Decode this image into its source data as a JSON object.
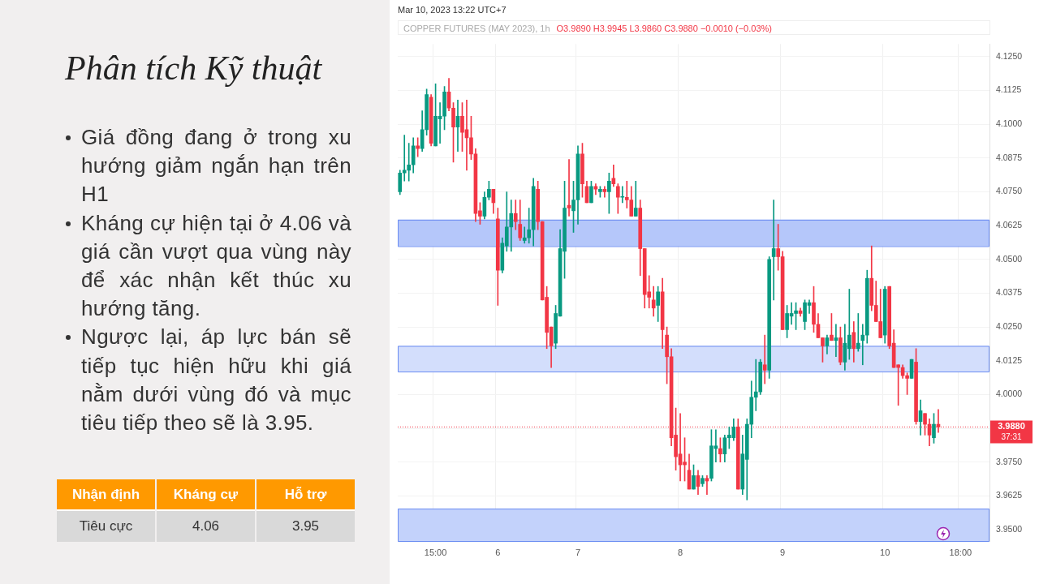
{
  "chart_data": {
    "type": "candlestick",
    "title": "Phân tích Kỹ thuật",
    "subtitle": "COPPER FUTURES (MAY 2023), 1h",
    "annotations": [
      "Mar 10, 2023 13:22 UTC+7",
      "O3.9890 H3.9945 L3.9860 C3.9880 −0.0010 (−0.03%)",
      "37:31",
      "Giá đồng đang ở trong xu hướng giảm ngắn hạn trên H1",
      "Kháng cự hiện tại ở 4.06 và giá cần vượt qua vùng này để xác nhận kết thúc xu hướng tăng.",
      "Ngược lại, áp lực bán sẽ tiếp tục hiện hữu khi giá nằm dưới vùng đó và mục tiêu tiếp theo sẽ là 3.95.",
      "Nhận định",
      "Kháng cự",
      "Hỗ trợ",
      "Tiêu cực",
      "4.06",
      "3.95"
    ],
    "categories": [
      null,
      null,
      null,
      null,
      null,
      null,
      null,
      null,
      "15:00",
      null,
      null,
      null,
      null,
      null,
      null,
      null,
      null,
      null,
      null,
      null,
      null,
      null,
      "6",
      null,
      null,
      null,
      null,
      null,
      null,
      null,
      null,
      null,
      null,
      null,
      null,
      null,
      null,
      null,
      null,
      null,
      "7",
      null,
      null,
      null,
      null,
      null,
      null,
      null,
      null,
      null,
      null,
      null,
      null,
      null,
      null,
      null,
      null,
      null,
      null,
      null,
      null,
      null,
      null,
      "8",
      null,
      null,
      null,
      null,
      null,
      null,
      null,
      null,
      null,
      null,
      null,
      null,
      null,
      null,
      null,
      null,
      null,
      null,
      null,
      null,
      null,
      null,
      "9",
      null,
      null,
      null,
      null,
      null,
      null,
      null,
      null,
      null,
      null,
      null,
      null,
      null,
      null,
      null,
      null,
      null,
      null,
      null,
      null,
      null,
      null,
      "10",
      null,
      null,
      null,
      null,
      null,
      null,
      null,
      null,
      null,
      null,
      null,
      null,
      null,
      null,
      null,
      null,
      "18:00",
      null,
      null,
      null,
      null,
      null,
      null
    ],
    "ohlc": [
      [
        4.075,
        4.083,
        4.074,
        4.082
      ],
      [
        4.082,
        4.096,
        4.079,
        4.083
      ],
      [
        4.083,
        4.093,
        4.079,
        4.085
      ],
      [
        4.085,
        4.095,
        4.082,
        4.092
      ],
      [
        4.092,
        4.095,
        4.088,
        4.091
      ],
      [
        4.091,
        4.105,
        4.09,
        4.098
      ],
      [
        4.098,
        4.113,
        4.096,
        4.111
      ],
      [
        4.11,
        4.111,
        4.092,
        4.093
      ],
      [
        4.092,
        4.115,
        4.092,
        4.103
      ],
      [
        4.102,
        4.108,
        4.093,
        4.103
      ],
      [
        4.103,
        4.114,
        4.098,
        4.112
      ],
      [
        4.112,
        4.117,
        4.105,
        4.106
      ],
      [
        4.106,
        4.108,
        4.086,
        4.099
      ],
      [
        4.099,
        4.109,
        4.09,
        4.103
      ],
      [
        4.103,
        4.108,
        4.09,
        4.097
      ],
      [
        4.098,
        4.109,
        4.083,
        4.095
      ],
      [
        4.095,
        4.103,
        4.087,
        4.089
      ],
      [
        4.089,
        4.091,
        4.064,
        4.067
      ],
      [
        4.068,
        4.071,
        4.063,
        4.066
      ],
      [
        4.066,
        4.075,
        4.065,
        4.073
      ],
      [
        4.073,
        4.079,
        4.072,
        4.076
      ],
      [
        4.076,
        4.076,
        4.067,
        4.071
      ],
      [
        4.065,
        4.069,
        4.033,
        4.046
      ],
      [
        4.046,
        4.058,
        4.045,
        4.056
      ],
      [
        4.055,
        4.075,
        4.053,
        4.062
      ],
      [
        4.062,
        4.072,
        4.053,
        4.067
      ],
      [
        4.067,
        4.072,
        4.061,
        4.064
      ],
      [
        4.063,
        4.072,
        4.057,
        4.058
      ],
      [
        4.057,
        4.062,
        4.056,
        4.058
      ],
      [
        4.058,
        4.069,
        4.056,
        4.061
      ],
      [
        4.061,
        4.08,
        4.055,
        4.077
      ],
      [
        4.076,
        4.079,
        4.061,
        4.064
      ],
      [
        4.064,
        4.064,
        4.035,
        4.035
      ],
      [
        4.036,
        4.04,
        4.017,
        4.023
      ],
      [
        4.025,
        4.025,
        4.01,
        4.018
      ],
      [
        4.019,
        4.033,
        4.017,
        4.03
      ],
      [
        4.029,
        4.061,
        4.029,
        4.054
      ],
      [
        4.053,
        4.079,
        4.043,
        4.069
      ],
      [
        4.07,
        4.087,
        4.066,
        4.069
      ],
      [
        4.068,
        4.079,
        4.06,
        4.072
      ],
      [
        4.072,
        4.092,
        4.063,
        4.089
      ],
      [
        4.089,
        4.093,
        4.073,
        4.078
      ],
      [
        4.077,
        4.079,
        4.071,
        4.071
      ],
      [
        4.071,
        4.079,
        4.071,
        4.077
      ],
      [
        4.077,
        4.078,
        4.074,
        4.076
      ],
      [
        4.075,
        4.077,
        4.073,
        4.076
      ],
      [
        4.076,
        4.077,
        4.073,
        4.075
      ],
      [
        4.075,
        4.082,
        4.067,
        4.079
      ],
      [
        4.08,
        4.085,
        4.077,
        4.078
      ],
      [
        4.077,
        4.078,
        4.067,
        4.073
      ],
      [
        4.073,
        4.077,
        4.071,
        4.073
      ],
      [
        4.073,
        4.079,
        4.069,
        4.072
      ],
      [
        4.072,
        4.077,
        4.066,
        4.066
      ],
      [
        4.066,
        4.079,
        4.066,
        4.069
      ],
      [
        4.069,
        4.072,
        4.044,
        4.054
      ],
      [
        4.054,
        4.054,
        4.032,
        4.037
      ],
      [
        4.038,
        4.044,
        4.032,
        4.036
      ],
      [
        4.035,
        4.04,
        4.029,
        4.032
      ],
      [
        4.033,
        4.04,
        4.027,
        4.038
      ],
      [
        4.038,
        4.043,
        4.017,
        4.024
      ],
      [
        4.022,
        4.025,
        4.004,
        4.014
      ],
      [
        4.014,
        4.017,
        3.981,
        3.984
      ],
      [
        3.985,
        3.995,
        3.972,
        3.977
      ],
      [
        3.978,
        3.993,
        3.968,
        3.974
      ],
      [
        3.975,
        3.984,
        3.968,
        3.974
      ],
      [
        3.972,
        3.978,
        3.965,
        3.965
      ],
      [
        3.965,
        3.974,
        3.965,
        3.97
      ],
      [
        3.97,
        3.972,
        3.963,
        3.966
      ],
      [
        3.967,
        3.97,
        3.966,
        3.969
      ],
      [
        3.969,
        3.97,
        3.963,
        3.968
      ],
      [
        3.969,
        3.987,
        3.968,
        3.981
      ],
      [
        3.98,
        3.987,
        3.975,
        3.981
      ],
      [
        3.98,
        3.984,
        3.975,
        3.978
      ],
      [
        3.978,
        3.985,
        3.975,
        3.984
      ],
      [
        3.984,
        3.988,
        3.98,
        3.985
      ],
      [
        3.984,
        3.991,
        3.983,
        3.988
      ],
      [
        3.988,
        3.991,
        3.965,
        3.965
      ],
      [
        3.965,
        3.985,
        3.963,
        3.978
      ],
      [
        3.976,
        3.991,
        3.961,
        3.989
      ],
      [
        3.989,
        4.005,
        3.984,
        3.999
      ],
      [
        3.999,
        4.013,
        3.994,
        4.001
      ],
      [
        4.001,
        4.013,
        4.0,
        4.012
      ],
      [
        4.011,
        4.022,
        4.004,
        4.009
      ],
      [
        4.009,
        4.051,
        4.006,
        4.05
      ],
      [
        4.051,
        4.072,
        4.035,
        4.054
      ],
      [
        4.054,
        4.063,
        4.046,
        4.051
      ],
      [
        4.051,
        4.053,
        4.024,
        4.024
      ],
      [
        4.024,
        4.033,
        4.021,
        4.03
      ],
      [
        4.029,
        4.034,
        4.026,
        4.03
      ],
      [
        4.03,
        4.034,
        4.024,
        4.031
      ],
      [
        4.031,
        4.032,
        4.029,
        4.03
      ],
      [
        4.027,
        4.035,
        4.024,
        4.034
      ],
      [
        4.033,
        4.035,
        4.03,
        4.034
      ],
      [
        4.034,
        4.04,
        4.023,
        4.026
      ],
      [
        4.026,
        4.03,
        4.021,
        4.021
      ],
      [
        4.021,
        4.021,
        4.012,
        4.018
      ],
      [
        4.018,
        4.022,
        4.015,
        4.021
      ],
      [
        4.022,
        4.03,
        4.02,
        4.02
      ],
      [
        4.02,
        4.026,
        4.014,
        4.021
      ],
      [
        4.021,
        4.025,
        4.011,
        4.012
      ],
      [
        4.012,
        4.026,
        4.009,
        4.019
      ],
      [
        4.017,
        4.039,
        4.013,
        4.022
      ],
      [
        4.023,
        4.027,
        4.012,
        4.017
      ],
      [
        4.017,
        4.03,
        4.016,
        4.019
      ],
      [
        4.02,
        4.026,
        4.011,
        4.022
      ],
      [
        4.022,
        4.046,
        4.019,
        4.043
      ],
      [
        4.043,
        4.055,
        4.031,
        4.033
      ],
      [
        4.033,
        4.042,
        4.027,
        4.027
      ],
      [
        4.027,
        4.039,
        4.021,
        4.021
      ],
      [
        4.022,
        4.04,
        4.019,
        4.039
      ],
      [
        4.04,
        4.04,
        4.017,
        4.018
      ],
      [
        4.019,
        4.024,
        4.01,
        4.01
      ],
      [
        4.011,
        4.011,
        3.996,
        4.01
      ],
      [
        4.01,
        4.011,
        4.006,
        4.007
      ],
      [
        4.007,
        4.008,
        4.0,
        4.006
      ],
      [
        4.006,
        4.013,
        4.006,
        4.013
      ],
      [
        4.012,
        4.017,
        3.989,
        3.99
      ],
      [
        3.99,
        3.998,
        3.985,
        3.994
      ],
      [
        3.993,
        3.993,
        3.985,
        3.989
      ],
      [
        3.989,
        3.991,
        3.981,
        3.985
      ],
      [
        3.984,
        3.993,
        3.982,
        3.989
      ],
      [
        3.989,
        3.9945,
        3.986,
        3.988
      ],
      null,
      null,
      null,
      null,
      null,
      null,
      null,
      null,
      null,
      null,
      null
    ],
    "ylim": [
      3.9458,
      4.1297
    ],
    "yticks": [
      {
        "value": 3.95,
        "label": "3.9500"
      },
      {
        "value": 3.9625,
        "label": "3.9625"
      },
      {
        "value": 3.975,
        "label": "3.9750"
      },
      {
        "value": 3.9875,
        "label": null
      },
      {
        "value": 4.0,
        "label": "4.0000"
      },
      {
        "value": 4.0125,
        "label": "4.0125"
      },
      {
        "value": 4.025,
        "label": "4.0250"
      },
      {
        "value": 4.0375,
        "label": "4.0375"
      },
      {
        "value": 4.05,
        "label": "4.0500"
      },
      {
        "value": 4.0625,
        "label": "4.0625"
      },
      {
        "value": 4.075,
        "label": "4.0750"
      },
      {
        "value": 4.0875,
        "label": "4.0875"
      },
      {
        "value": 4.1,
        "label": "4.1000"
      },
      {
        "value": 4.1125,
        "label": "4.1125"
      },
      {
        "value": 4.125,
        "label": "4.1250"
      }
    ],
    "bands": [
      {
        "axis": "y",
        "from": 4.0549,
        "to": 4.0647,
        "color": "#b5c7fa"
      },
      {
        "axis": "y",
        "from": 4.0085,
        "to": 4.018,
        "color": "#d3defc"
      },
      {
        "axis": "y",
        "from": 3.9458,
        "to": 3.9578,
        "color": "#c3d2fb"
      }
    ],
    "ref_lines": [
      {
        "axis": "y",
        "value": 3.988,
        "label": "3.9880",
        "color": "#f23645",
        "line_style": "dotted"
      }
    ],
    "grid": true,
    "legend": false
  }
}
